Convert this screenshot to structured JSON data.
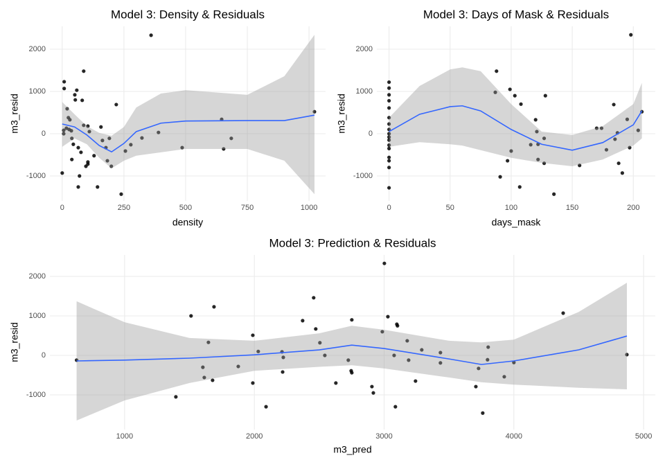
{
  "chart_data": [
    {
      "type": "scatter",
      "title": "Model 3: Density & Residuals",
      "x_label": "density",
      "y_label": "m3_resid",
      "point_color": "#000000",
      "grid": true,
      "x": [
        0,
        8,
        8,
        6,
        6,
        17,
        20,
        25,
        31,
        28,
        37,
        39,
        39,
        45,
        51,
        53,
        59,
        65,
        65,
        70,
        76,
        87,
        81,
        87,
        96,
        104,
        104,
        104,
        110,
        129,
        143,
        157,
        163,
        177,
        183,
        191,
        199,
        219,
        239,
        256,
        278,
        323,
        360,
        390,
        486,
        646,
        654,
        685,
        1022
      ],
      "y": [
        -930,
        1230,
        1070,
        0,
        80,
        130,
        590,
        380,
        330,
        100,
        70,
        -110,
        -610,
        -250,
        920,
        800,
        1030,
        -1260,
        -330,
        -1000,
        -440,
        1480,
        790,
        200,
        -770,
        180,
        -670,
        -720,
        50,
        -520,
        -1260,
        160,
        -160,
        -330,
        -640,
        -110,
        -770,
        690,
        -1430,
        -410,
        -260,
        -100,
        2330,
        30,
        -330,
        340,
        -360,
        -110,
        520
      ],
      "smooth": {
        "color": "#3366ff",
        "band_color": "#999999",
        "x": [
          0,
          50,
          100,
          150,
          200,
          250,
          300,
          400,
          500,
          750,
          900,
          1022
        ],
        "y": [
          230,
          160,
          -30,
          -280,
          -430,
          -230,
          50,
          250,
          300,
          310,
          310,
          440
        ],
        "upper": [
          750,
          460,
          180,
          20,
          -50,
          160,
          620,
          950,
          1030,
          920,
          1360,
          2340
        ],
        "lower": [
          -310,
          -110,
          -250,
          -570,
          -820,
          -640,
          -520,
          -440,
          -360,
          -360,
          -640,
          -1430
        ]
      },
      "xlim": [
        -50,
        1067
      ],
      "ylim": [
        -1590,
        2541
      ],
      "xticks": [
        0,
        250,
        500,
        750,
        1000
      ],
      "yticks": [
        -1000,
        0,
        1000,
        2000
      ]
    },
    {
      "type": "scatter",
      "title": "Model 3: Days of Mask & Residuals",
      "x_label": "days_mask",
      "y_label": "m3_resid",
      "point_color": "#000000",
      "grid": true,
      "x": [
        0,
        0,
        0,
        0,
        0,
        0,
        0,
        0,
        0,
        0,
        0,
        0,
        0,
        0,
        0,
        0,
        0,
        88,
        87,
        91,
        97,
        99,
        100,
        103,
        107,
        108,
        116,
        120,
        121,
        122,
        122,
        128,
        127,
        127,
        135,
        156,
        170,
        174,
        178,
        184,
        185,
        187,
        188,
        191,
        195,
        197,
        198,
        204,
        207
      ],
      "y": [
        1220,
        1080,
        920,
        780,
        610,
        380,
        230,
        100,
        0,
        -80,
        -150,
        -270,
        -350,
        -560,
        -640,
        -800,
        -1280,
        1480,
        980,
        -1020,
        -640,
        1050,
        -410,
        900,
        -1260,
        700,
        -260,
        330,
        50,
        -250,
        -610,
        900,
        -110,
        -700,
        -1430,
        -750,
        130,
        130,
        -380,
        690,
        -130,
        20,
        -700,
        -930,
        340,
        -330,
        2340,
        80,
        520
      ],
      "smooth": {
        "color": "#3366ff",
        "band_color": "#999999",
        "x": [
          0,
          25,
          50,
          60,
          75,
          100,
          125,
          150,
          175,
          200,
          207
        ],
        "y": [
          50,
          460,
          640,
          660,
          540,
          100,
          -250,
          -390,
          -210,
          210,
          540
        ],
        "upper": [
          380,
          1130,
          1520,
          1570,
          1480,
          700,
          50,
          -30,
          180,
          700,
          1200
        ],
        "lower": [
          -310,
          -200,
          -250,
          -280,
          -390,
          -570,
          -690,
          -770,
          -610,
          -280,
          -110
        ]
      },
      "xlim": [
        -10,
        218
      ],
      "ylim": [
        -1590,
        2541
      ],
      "xticks": [
        0,
        50,
        100,
        150,
        200
      ],
      "yticks": [
        -1000,
        0,
        1000,
        2000
      ]
    },
    {
      "type": "scatter",
      "title": "Model 3: Prediction & Residuals",
      "x_label": "m3_pred",
      "y_label": "m3_resid",
      "point_color": "#000000",
      "grid": true,
      "x": [
        630,
        1512,
        1646,
        1689,
        1603,
        1614,
        1678,
        1395,
        1876,
        2030,
        1988,
        1988,
        2090,
        2213,
        2223,
        2218,
        2372,
        2457,
        2473,
        2505,
        2543,
        2628,
        2724,
        2746,
        2751,
        2751,
        2906,
        2917,
        2986,
        3002,
        3029,
        3077,
        3098,
        3103,
        3087,
        3178,
        3189,
        3242,
        3290,
        3434,
        3434,
        3707,
        3728,
        3797,
        3802,
        3760,
        4000,
        3926,
        4380,
        4871
      ],
      "y": [
        -120,
        1000,
        330,
        1230,
        -300,
        -560,
        -630,
        -1050,
        -280,
        100,
        510,
        -700,
        -1300,
        90,
        -50,
        -420,
        880,
        1460,
        670,
        320,
        0,
        -700,
        -120,
        -390,
        -440,
        900,
        -790,
        -950,
        600,
        2330,
        980,
        0,
        790,
        750,
        -1300,
        370,
        -120,
        -650,
        140,
        70,
        -190,
        -790,
        -330,
        -110,
        210,
        -1460,
        -180,
        -540,
        1070,
        20
      ],
      "smooth": {
        "color": "#3366ff",
        "band_color": "#999999",
        "x": [
          630,
          1000,
          1500,
          2000,
          2500,
          2750,
          3000,
          3500,
          3750,
          4000,
          4500,
          4871
        ],
        "y": [
          -140,
          -120,
          -70,
          15,
          140,
          260,
          175,
          -90,
          -230,
          -140,
          140,
          490
        ],
        "upper": [
          1370,
          840,
          440,
          370,
          560,
          750,
          650,
          370,
          330,
          400,
          1100,
          1840
        ],
        "lower": [
          -1650,
          -1140,
          -700,
          -390,
          -290,
          -250,
          -330,
          -560,
          -680,
          -740,
          -820,
          -860
        ]
      },
      "xlim": [
        424,
        5090
      ],
      "ylim": [
        -1877,
        2544
      ],
      "xticks": [
        1000,
        2000,
        3000,
        4000,
        5000
      ],
      "yticks": [
        -1000,
        0,
        1000,
        2000
      ]
    }
  ]
}
